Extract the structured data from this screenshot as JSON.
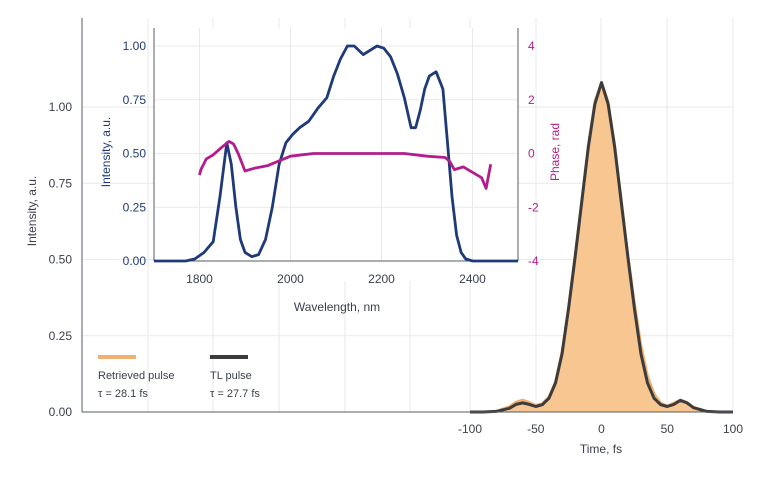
{
  "chart_data": [
    {
      "id": "main",
      "type": "area",
      "xlabel": "Time, fs",
      "ylabel": "Intensity, a.u.",
      "xlim": [
        -100,
        100
      ],
      "ylim": [
        0,
        1.2
      ],
      "xticks": [
        -100,
        -50,
        0,
        50,
        100
      ],
      "xtick_labels": [
        "-100",
        "-50",
        "0",
        "50",
        "100"
      ],
      "yticks": [
        0,
        0.25,
        0.5,
        0.75,
        1.0
      ],
      "ytick_labels": [
        "0.00",
        "0.25",
        "0.50",
        "0.75",
        "1.00"
      ],
      "grid": true,
      "legend": "bottom-left",
      "series": [
        {
          "name": "Retrieved pulse",
          "sublabel": "τ = 28.1 fs",
          "style": "filled-area",
          "color": "#f2b072",
          "fill": "#f8c690",
          "x": [
            -100,
            -90,
            -80,
            -70,
            -65,
            -60,
            -55,
            -50,
            -45,
            -40,
            -35,
            -30,
            -25,
            -20,
            -15,
            -10,
            -5,
            0,
            5,
            10,
            15,
            20,
            25,
            30,
            35,
            40,
            45,
            50,
            55,
            60,
            65,
            70,
            80,
            90,
            100
          ],
          "values": [
            0.0,
            0.0,
            0.003,
            0.018,
            0.033,
            0.04,
            0.032,
            0.022,
            0.028,
            0.05,
            0.1,
            0.2,
            0.35,
            0.52,
            0.7,
            0.88,
            1.02,
            1.08,
            1.02,
            0.88,
            0.7,
            0.52,
            0.36,
            0.22,
            0.12,
            0.06,
            0.03,
            0.02,
            0.03,
            0.04,
            0.032,
            0.016,
            0.003,
            0.0,
            0.0
          ]
        },
        {
          "name": "TL pulse",
          "sublabel": "τ = 27.7 fs",
          "style": "line",
          "color": "#3c3c3c",
          "x": [
            -100,
            -90,
            -80,
            -70,
            -65,
            -60,
            -55,
            -50,
            -45,
            -40,
            -35,
            -30,
            -25,
            -20,
            -15,
            -10,
            -5,
            0,
            5,
            10,
            15,
            20,
            25,
            30,
            35,
            40,
            45,
            50,
            55,
            60,
            65,
            70,
            80,
            90,
            100
          ],
          "values": [
            0.0,
            0.0,
            0.002,
            0.012,
            0.025,
            0.03,
            0.025,
            0.018,
            0.024,
            0.045,
            0.095,
            0.19,
            0.34,
            0.51,
            0.69,
            0.87,
            1.01,
            1.08,
            1.01,
            0.87,
            0.69,
            0.51,
            0.34,
            0.19,
            0.095,
            0.045,
            0.024,
            0.018,
            0.025,
            0.038,
            0.03,
            0.014,
            0.002,
            0.0,
            0.0
          ]
        }
      ]
    },
    {
      "id": "inset",
      "type": "line",
      "xlabel": "Wavelength, nm",
      "ylabel": "Intensity, a.u.",
      "y2label": "Phase, rad",
      "xlim": [
        1700,
        2500
      ],
      "ylim": [
        0,
        1.0
      ],
      "y2lim": [
        -4,
        4
      ],
      "xticks": [
        1800,
        2000,
        2200,
        2400
      ],
      "xtick_labels": [
        "1800",
        "2000",
        "2200",
        "2400"
      ],
      "yticks": [
        0,
        0.25,
        0.5,
        0.75,
        1.0
      ],
      "ytick_labels": [
        "0.00",
        "0.25",
        "0.50",
        "0.75",
        "1.00"
      ],
      "y2ticks": [
        -4,
        -2,
        0,
        2,
        4
      ],
      "y2tick_labels": [
        "-4",
        "-2",
        "0",
        "2",
        "4"
      ],
      "grid": true,
      "colors": {
        "intensity": "#1f3a78",
        "phase": "#b31c8d"
      },
      "intensity": {
        "x": [
          1700,
          1770,
          1790,
          1810,
          1830,
          1845,
          1860,
          1870,
          1880,
          1890,
          1900,
          1915,
          1930,
          1945,
          1960,
          1975,
          1990,
          2005,
          2020,
          2040,
          2060,
          2080,
          2095,
          2110,
          2125,
          2140,
          2160,
          2175,
          2190,
          2205,
          2220,
          2235,
          2250,
          2265,
          2275,
          2285,
          2295,
          2305,
          2320,
          2335,
          2345,
          2355,
          2365,
          2375,
          2385,
          2400,
          2500
        ],
        "values": [
          0.0,
          0.0,
          0.01,
          0.04,
          0.09,
          0.3,
          0.55,
          0.45,
          0.25,
          0.1,
          0.04,
          0.02,
          0.03,
          0.1,
          0.25,
          0.45,
          0.55,
          0.59,
          0.62,
          0.65,
          0.71,
          0.76,
          0.86,
          0.94,
          1.0,
          1.0,
          0.96,
          0.98,
          1.0,
          0.99,
          0.95,
          0.87,
          0.76,
          0.62,
          0.62,
          0.7,
          0.8,
          0.86,
          0.88,
          0.8,
          0.55,
          0.3,
          0.12,
          0.04,
          0.01,
          0.0,
          0.0
        ]
      },
      "phase": {
        "x": [
          1800,
          1803,
          1815,
          1830,
          1850,
          1865,
          1875,
          1885,
          1900,
          1920,
          1950,
          2000,
          2050,
          2100,
          2150,
          2200,
          2250,
          2300,
          2340,
          2350,
          2360,
          2380,
          2400,
          2420,
          2430,
          2440
        ],
        "values": [
          -0.8,
          -0.6,
          -0.2,
          -0.05,
          0.25,
          0.45,
          0.35,
          0.0,
          -0.65,
          -0.55,
          -0.45,
          -0.1,
          0.0,
          0.0,
          0.0,
          0.0,
          0.0,
          -0.1,
          -0.15,
          -0.3,
          -0.6,
          -0.5,
          -0.7,
          -0.9,
          -1.3,
          -0.4
        ]
      }
    }
  ]
}
